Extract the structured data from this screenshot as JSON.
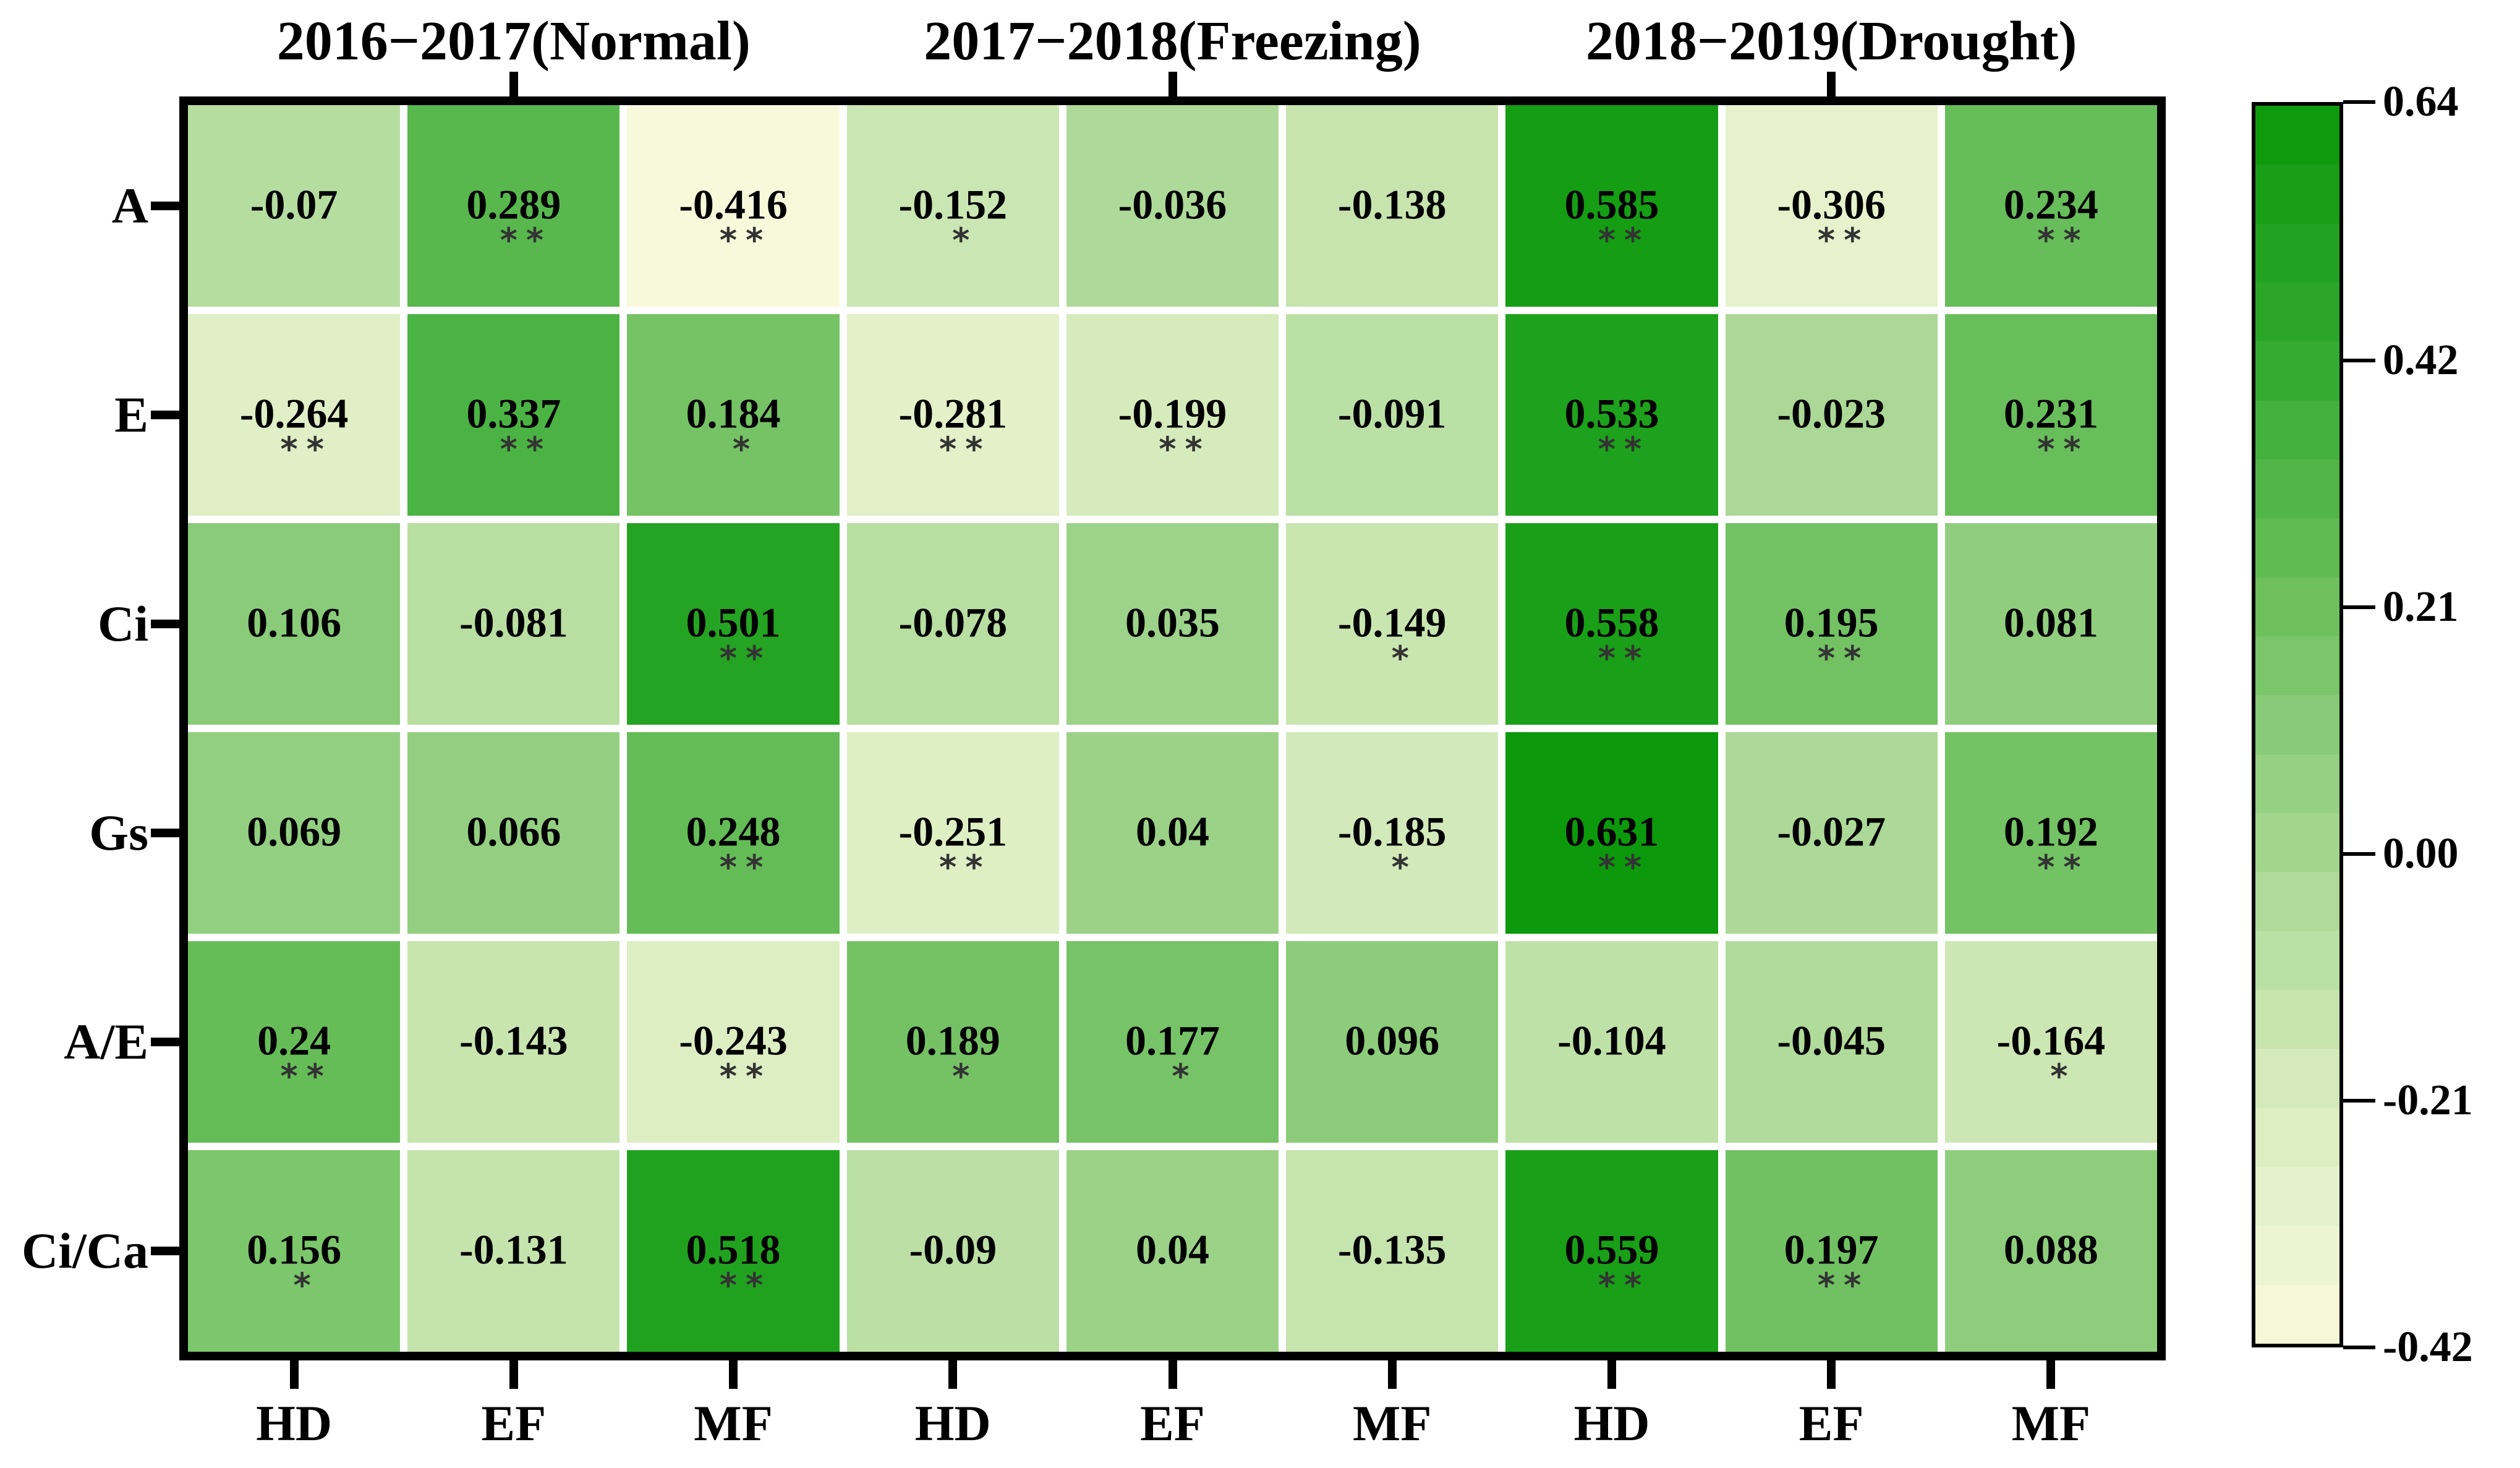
{
  "chart_data": {
    "type": "heatmap",
    "title": "",
    "row_labels": [
      "A",
      "E",
      "Ci",
      "Gs",
      "A/E",
      "Ci/Ca"
    ],
    "col_labels": [
      "HD",
      "EF",
      "MF",
      "HD",
      "EF",
      "MF",
      "HD",
      "EF",
      "MF"
    ],
    "col_groups": [
      {
        "label": "2016−2017(Normal)",
        "span": 3
      },
      {
        "label": "2017−2018(Freezing)",
        "span": 3
      },
      {
        "label": "2018−2019(Drought)",
        "span": 3
      }
    ],
    "values": [
      [
        "-0.07",
        "0.289",
        "-0.416",
        "-0.152",
        "-0.036",
        "-0.138",
        "0.585",
        "-0.306",
        "0.234"
      ],
      [
        "-0.264",
        "0.337",
        "0.184",
        "-0.281",
        "-0.199",
        "-0.091",
        "0.533",
        "-0.023",
        "0.231"
      ],
      [
        "0.106",
        "-0.081",
        "0.501",
        "-0.078",
        "0.035",
        "-0.149",
        "0.558",
        "0.195",
        "0.081"
      ],
      [
        "0.069",
        "0.066",
        "0.248",
        "-0.251",
        "0.04",
        "-0.185",
        "0.631",
        "-0.027",
        "0.192"
      ],
      [
        "0.24",
        "-0.143",
        "-0.243",
        "0.189",
        "0.177",
        "0.096",
        "-0.104",
        "-0.045",
        "-0.164"
      ],
      [
        "0.156",
        "-0.131",
        "0.518",
        "-0.09",
        "0.04",
        "-0.135",
        "0.559",
        "0.197",
        "0.088"
      ]
    ],
    "significance": [
      [
        "",
        "**",
        "**",
        "*",
        "",
        "",
        "**",
        "**",
        "**"
      ],
      [
        "**",
        "**",
        "*",
        "**",
        "**",
        "",
        "**",
        "",
        "**"
      ],
      [
        "",
        "",
        "**",
        "",
        "",
        "*",
        "**",
        "**",
        ""
      ],
      [
        "",
        "",
        "**",
        "**",
        "",
        "*",
        "**",
        "",
        "**"
      ],
      [
        "**",
        "",
        "**",
        "*",
        "*",
        "",
        "",
        "",
        "*"
      ],
      [
        "*",
        "",
        "**",
        "",
        "",
        "",
        "**",
        "**",
        ""
      ]
    ],
    "colorbar": {
      "min": -0.42,
      "max": 0.64,
      "tick_labels": [
        "0.64",
        "0.42",
        "0.21",
        "0.00",
        "-0.21",
        "-0.42"
      ],
      "tick_values": [
        0.64,
        0.42,
        0.21,
        0.0,
        -0.21,
        -0.42
      ],
      "steps": 21
    },
    "colormap_stops": [
      {
        "v": -0.42,
        "color": "#f8f9dc"
      },
      {
        "v": -0.21,
        "color": "#d8ecbe"
      },
      {
        "v": 0.0,
        "color": "#a5d691"
      },
      {
        "v": 0.21,
        "color": "#6ec05f"
      },
      {
        "v": 0.42,
        "color": "#34aa30"
      },
      {
        "v": 0.64,
        "color": "#0a980a"
      }
    ],
    "legend_position": "right",
    "grid": false
  }
}
